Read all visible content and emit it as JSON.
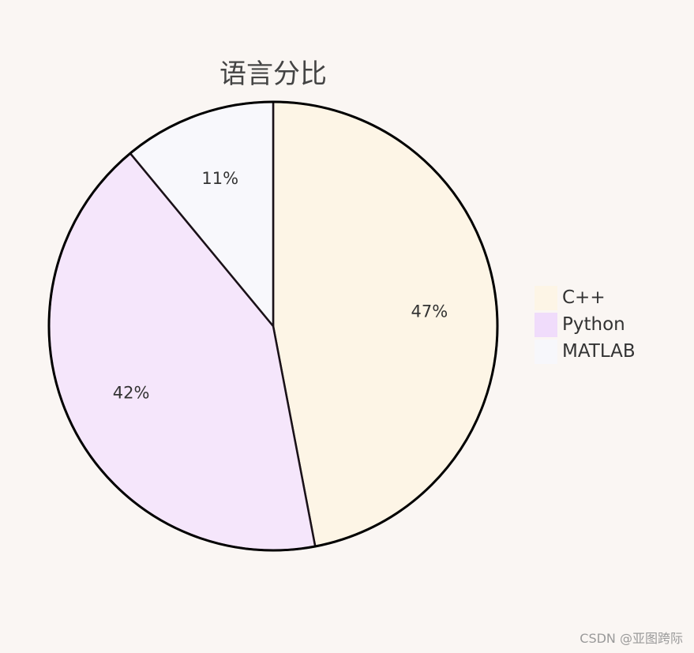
{
  "chart_data": {
    "type": "pie",
    "title": "语言分比",
    "categories": [
      "C++",
      "Python",
      "MATLAB"
    ],
    "values": [
      47,
      42,
      11
    ],
    "labels": [
      "47%",
      "42%",
      "11%"
    ],
    "colors": [
      "#fdf5e6",
      "#f5e6fb",
      "#f8f8fc"
    ],
    "legend_colors": [
      "#fdf5e6",
      "#f0dcfb",
      "#f7f7fb"
    ],
    "start_angle_deg": 90,
    "direction": "clockwise",
    "legend_position": "right"
  },
  "watermark": "CSDN @亚图跨际"
}
